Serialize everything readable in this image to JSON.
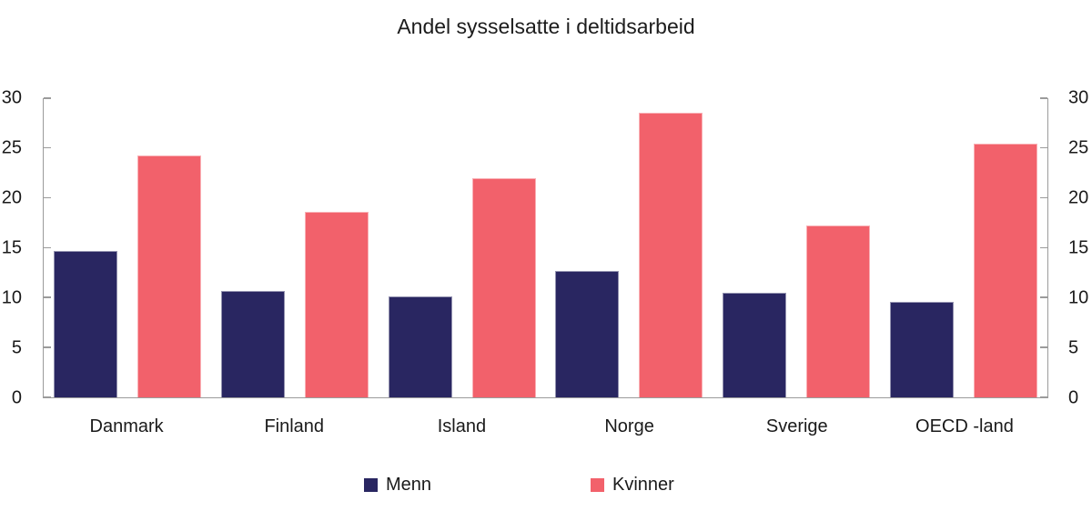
{
  "page": {
    "background": "#ffffff"
  },
  "chart_data": {
    "type": "bar",
    "title": "Andel sysselsatte i deltidsarbeid",
    "categories": [
      "Danmark",
      "Finland",
      "Island",
      "Norge",
      "Sverige",
      "OECD -land"
    ],
    "series": [
      {
        "name": "Menn",
        "color": "#292661",
        "values": [
          14.7,
          10.7,
          10.1,
          12.7,
          10.5,
          9.6
        ]
      },
      {
        "name": "Kvinner",
        "color": "#f2616b",
        "values": [
          24.3,
          18.6,
          22.0,
          28.5,
          17.2,
          25.4
        ]
      }
    ],
    "xlabel": "",
    "ylabel": "",
    "ylim": [
      0,
      30
    ],
    "yticks": [
      0,
      5,
      10,
      15,
      20,
      25,
      30
    ],
    "y_axis_sides": "both",
    "grid": false,
    "legend_position": "bottom"
  },
  "legend": {
    "items": [
      {
        "label": "Menn",
        "color": "#292661"
      },
      {
        "label": "Kvinner",
        "color": "#f2616b"
      }
    ]
  },
  "colors": {
    "axis_line": "#9b9b9b",
    "text": "#1a1a1a",
    "menn": "#292661",
    "kvinner": "#f2616b"
  }
}
